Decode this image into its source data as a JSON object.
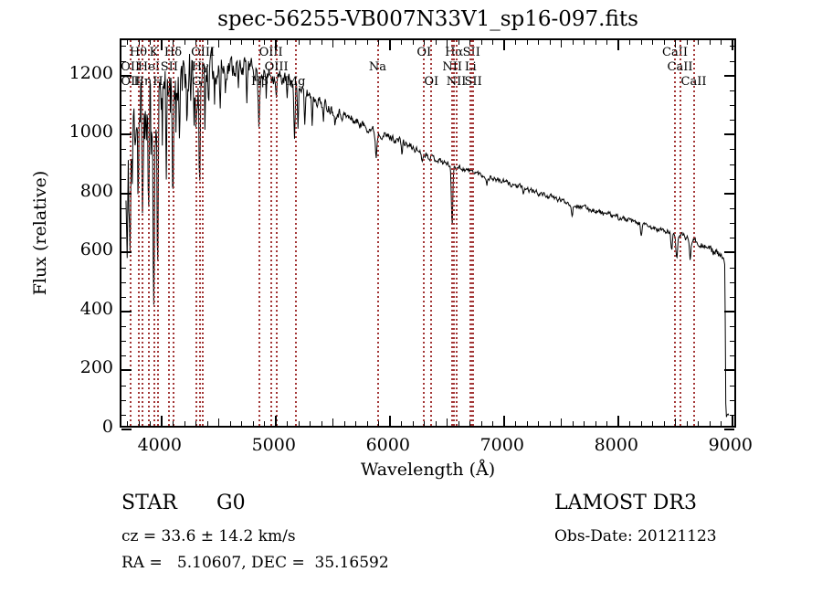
{
  "title": "spec-56255-VB007N33V1_sp16-097.fits",
  "colors": {
    "spectrum_line": "#000000",
    "line_marker": "#a33636",
    "background": "#ffffff",
    "text": "#000000"
  },
  "annotations": {
    "class": "STAR",
    "subclass": "G0",
    "cz": "cz = 33.6 ± 14.2 km/s",
    "radec": "RA =   5.10607, DEC =  35.16592",
    "survey": "LAMOST DR3",
    "obs_date": "Obs-Date: 20121123"
  },
  "chart_data": {
    "type": "line",
    "title": "spec-56255-VB007N33V1_sp16-097.fits",
    "xlabel": "Wavelength (Å)",
    "ylabel": "Flux (relative)",
    "xlim": [
      3650,
      9050
    ],
    "ylim": [
      0,
      1320
    ],
    "x_major_ticks": [
      4000,
      5000,
      6000,
      7000,
      8000,
      9000
    ],
    "x_minor_step": 100,
    "y_major_ticks": [
      0,
      200,
      400,
      600,
      800,
      1000,
      1200
    ],
    "y_minor_step": 50,
    "grid": false,
    "legend": "none",
    "spectral_lines": [
      {
        "label": "Hθ",
        "wavelength": 3798,
        "row": 1
      },
      {
        "label": "K",
        "wavelength": 3934,
        "row": 1
      },
      {
        "label": "Hδ",
        "wavelength": 4102,
        "row": 1
      },
      {
        "label": "OIII",
        "wavelength": 4363,
        "row": 1
      },
      {
        "label": "OIII",
        "wavelength": 4959,
        "row": 1
      },
      {
        "label": "OI",
        "wavelength": 6300,
        "row": 1
      },
      {
        "label": "Hα",
        "wavelength": 6563,
        "row": 1
      },
      {
        "label": "SII",
        "wavelength": 6716,
        "row": 1
      },
      {
        "label": "CaII",
        "wavelength": 8498,
        "row": 1
      },
      {
        "label": "OII",
        "wavelength": 3727,
        "row": 2
      },
      {
        "label": "HeI",
        "wavelength": 3889,
        "row": 2
      },
      {
        "label": "SII",
        "wavelength": 4069,
        "row": 2
      },
      {
        "label": "Hγ",
        "wavelength": 4340,
        "row": 2
      },
      {
        "label": "OIII",
        "wavelength": 5007,
        "row": 2
      },
      {
        "label": "Na",
        "wavelength": 5894,
        "row": 2
      },
      {
        "label": "NII",
        "wavelength": 6548,
        "row": 2
      },
      {
        "label": "Li",
        "wavelength": 6708,
        "row": 2
      },
      {
        "label": "CaII",
        "wavelength": 8542,
        "row": 2
      },
      {
        "label": "OII",
        "wavelength": 3729,
        "row": 3
      },
      {
        "label": "Hη",
        "wavelength": 3835,
        "row": 3
      },
      {
        "label": "H",
        "wavelength": 3969,
        "row": 3
      },
      {
        "label": "G",
        "wavelength": 4308,
        "row": 3
      },
      {
        "label": "Hβ",
        "wavelength": 4861,
        "row": 3
      },
      {
        "label": "Mg",
        "wavelength": 5175,
        "row": 3
      },
      {
        "label": "OI",
        "wavelength": 6364,
        "row": 3
      },
      {
        "label": "NII",
        "wavelength": 6583,
        "row": 3
      },
      {
        "label": "SII",
        "wavelength": 6731,
        "row": 3
      },
      {
        "label": "CaII",
        "wavelength": 8662,
        "row": 3
      }
    ],
    "spectrum": {
      "x_start": 3690,
      "x_end": 9000,
      "sample_step": 5,
      "noise_seed": 11,
      "envelope": [
        [
          3690,
          780
        ],
        [
          3740,
          980
        ],
        [
          3800,
          1120
        ],
        [
          3900,
          1150
        ],
        [
          4000,
          1170
        ],
        [
          4150,
          1210
        ],
        [
          4300,
          1210
        ],
        [
          4500,
          1225
        ],
        [
          4700,
          1235
        ],
        [
          4900,
          1210
        ],
        [
          5100,
          1185
        ],
        [
          5300,
          1135
        ],
        [
          5500,
          1085
        ],
        [
          5700,
          1045
        ],
        [
          5900,
          1005
        ],
        [
          6100,
          975
        ],
        [
          6300,
          935
        ],
        [
          6500,
          900
        ],
        [
          6700,
          875
        ],
        [
          6900,
          850
        ],
        [
          7100,
          825
        ],
        [
          7300,
          800
        ],
        [
          7500,
          775
        ],
        [
          7700,
          750
        ],
        [
          7900,
          728
        ],
        [
          8100,
          705
        ],
        [
          8300,
          680
        ],
        [
          8500,
          660
        ],
        [
          8700,
          635
        ],
        [
          8900,
          590
        ],
        [
          8960,
          565
        ],
        [
          8968,
          540
        ],
        [
          8972,
          180
        ],
        [
          8976,
          35
        ],
        [
          9000,
          28
        ]
      ],
      "absorption_features": [
        [
          3700,
          280,
          4
        ],
        [
          3715,
          200,
          3
        ],
        [
          3727,
          330,
          4
        ],
        [
          3745,
          240,
          3
        ],
        [
          3798,
          280,
          5
        ],
        [
          3815,
          150,
          3
        ],
        [
          3835,
          430,
          5
        ],
        [
          3855,
          250,
          3
        ],
        [
          3870,
          180,
          3
        ],
        [
          3889,
          480,
          5
        ],
        [
          3910,
          240,
          3
        ],
        [
          3934,
          760,
          6
        ],
        [
          3950,
          200,
          3
        ],
        [
          3969,
          560,
          6
        ],
        [
          4010,
          200,
          3
        ],
        [
          4045,
          260,
          4
        ],
        [
          4080,
          200,
          3
        ],
        [
          4102,
          450,
          6
        ],
        [
          4130,
          180,
          3
        ],
        [
          4160,
          230,
          4
        ],
        [
          4185,
          160,
          3
        ],
        [
          4227,
          280,
          4
        ],
        [
          4260,
          160,
          3
        ],
        [
          4290,
          170,
          3
        ],
        [
          4308,
          170,
          8
        ],
        [
          4340,
          390,
          6
        ],
        [
          4385,
          160,
          4
        ],
        [
          4420,
          130,
          3
        ],
        [
          4470,
          110,
          3
        ],
        [
          4520,
          140,
          4
        ],
        [
          4565,
          100,
          3
        ],
        [
          4680,
          100,
          4
        ],
        [
          4755,
          120,
          4
        ],
        [
          4861,
          180,
          7
        ],
        [
          4925,
          90,
          4
        ],
        [
          5015,
          80,
          4
        ],
        [
          5110,
          70,
          4
        ],
        [
          5175,
          190,
          5
        ],
        [
          5205,
          120,
          4
        ],
        [
          5265,
          130,
          5
        ],
        [
          5330,
          90,
          4
        ],
        [
          5430,
          70,
          4
        ],
        [
          5530,
          50,
          4
        ],
        [
          5894,
          80,
          7
        ],
        [
          6122,
          40,
          4
        ],
        [
          6300,
          35,
          4
        ],
        [
          6563,
          215,
          6
        ],
        [
          6870,
          35,
          5
        ],
        [
          7190,
          30,
          4
        ],
        [
          7620,
          45,
          6
        ],
        [
          8230,
          35,
          5
        ],
        [
          8498,
          55,
          7
        ],
        [
          8542,
          75,
          7
        ],
        [
          8662,
          65,
          7
        ]
      ],
      "noise_amplitude": [
        [
          3690,
          160
        ],
        [
          3760,
          120
        ],
        [
          4000,
          95
        ],
        [
          4300,
          75
        ],
        [
          4500,
          45
        ],
        [
          4800,
          28
        ],
        [
          5200,
          22
        ],
        [
          5800,
          14
        ],
        [
          6500,
          10
        ],
        [
          7500,
          8
        ],
        [
          8300,
          9
        ],
        [
          8900,
          12
        ],
        [
          9000,
          10
        ]
      ]
    }
  }
}
